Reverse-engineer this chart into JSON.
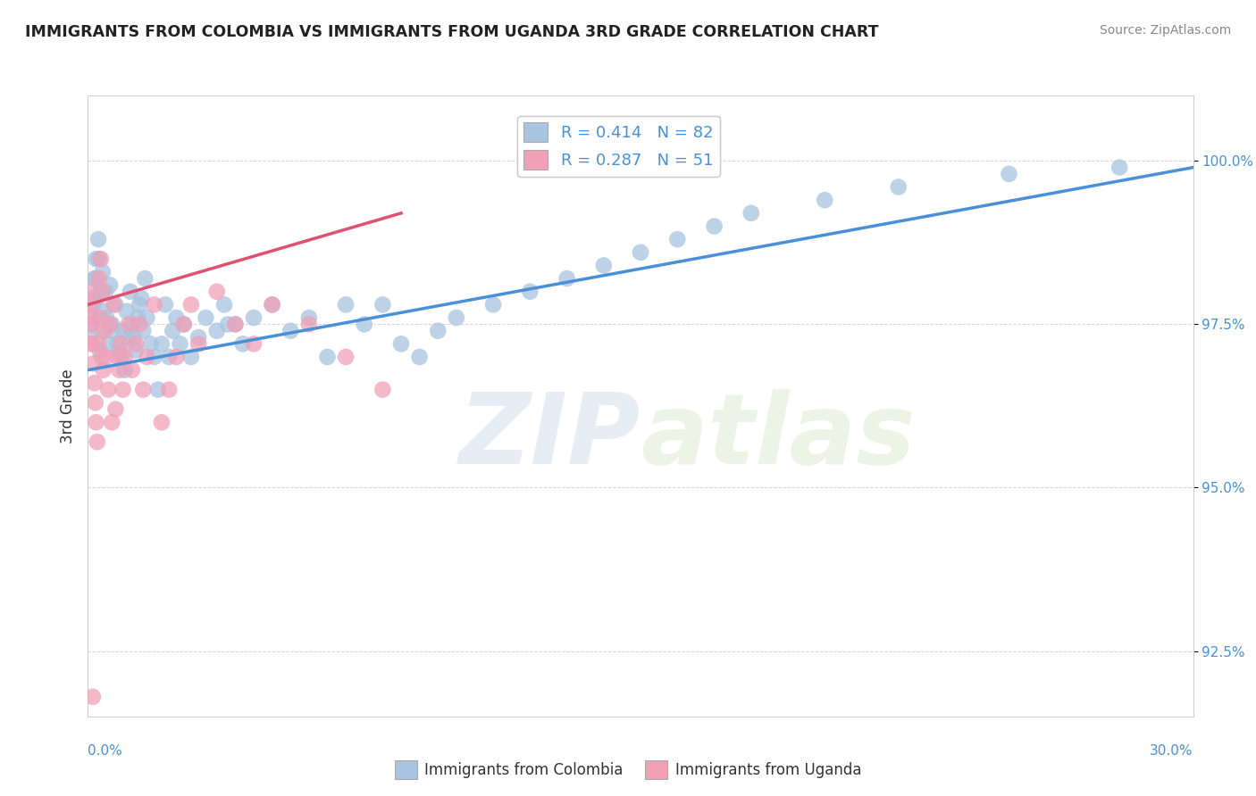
{
  "title": "IMMIGRANTS FROM COLOMBIA VS IMMIGRANTS FROM UGANDA 3RD GRADE CORRELATION CHART",
  "source": "Source: ZipAtlas.com",
  "ylabel": "3rd Grade",
  "yticks": [
    92.5,
    95.0,
    97.5,
    100.0
  ],
  "ytick_labels": [
    "92.5%",
    "95.0%",
    "97.5%",
    "100.0%"
  ],
  "xlim": [
    0.0,
    30.0
  ],
  "ylim": [
    91.5,
    101.0
  ],
  "colombia_color": "#a8c4e0",
  "uganda_color": "#f0a0b8",
  "colombia_line_color": "#4a90d9",
  "uganda_line_color": "#e05070",
  "legend1_label": "R = 0.414   N = 82",
  "legend2_label": "R = 0.287   N = 51",
  "bottom_legend1": "Immigrants from Colombia",
  "bottom_legend2": "Immigrants from Uganda",
  "watermark_zip": "ZIP",
  "watermark_atlas": "atlas",
  "colombia_scatter_x": [
    0.1,
    0.15,
    0.2,
    0.25,
    0.3,
    0.35,
    0.4,
    0.5,
    0.6,
    0.7,
    0.8,
    0.9,
    1.0,
    1.1,
    1.2,
    1.3,
    1.4,
    1.5,
    1.6,
    1.7,
    1.8,
    1.9,
    2.0,
    2.1,
    2.2,
    2.3,
    2.4,
    2.5,
    2.6,
    2.8,
    3.0,
    3.2,
    3.5,
    3.7,
    4.0,
    4.2,
    4.5,
    5.0,
    5.5,
    6.0,
    6.5,
    7.0,
    7.5,
    8.0,
    8.5,
    9.0,
    9.5,
    10.0,
    11.0,
    12.0,
    13.0,
    14.0,
    15.0,
    16.0,
    17.0,
    18.0,
    20.0,
    22.0,
    25.0,
    28.0,
    0.05,
    0.08,
    0.12,
    0.18,
    0.22,
    0.28,
    0.32,
    0.38,
    0.42,
    0.48,
    0.55,
    0.65,
    0.75,
    0.85,
    0.95,
    1.05,
    1.15,
    1.25,
    1.35,
    1.45,
    1.55,
    3.8
  ],
  "colombia_scatter_y": [
    97.5,
    97.8,
    98.2,
    97.9,
    98.5,
    98.0,
    98.3,
    97.6,
    98.1,
    97.4,
    97.2,
    97.0,
    96.8,
    97.3,
    97.5,
    97.1,
    97.8,
    97.4,
    97.6,
    97.2,
    97.0,
    96.5,
    97.2,
    97.8,
    97.0,
    97.4,
    97.6,
    97.2,
    97.5,
    97.0,
    97.3,
    97.6,
    97.4,
    97.8,
    97.5,
    97.2,
    97.6,
    97.8,
    97.4,
    97.6,
    97.0,
    97.8,
    97.5,
    97.8,
    97.2,
    97.0,
    97.4,
    97.6,
    97.8,
    98.0,
    98.2,
    98.4,
    98.6,
    98.8,
    99.0,
    99.2,
    99.4,
    99.6,
    99.8,
    99.9,
    97.3,
    97.6,
    97.9,
    98.2,
    98.5,
    98.8,
    97.1,
    97.4,
    97.7,
    98.0,
    97.2,
    97.5,
    97.8,
    97.1,
    97.4,
    97.7,
    98.0,
    97.3,
    97.6,
    97.9,
    98.2,
    97.5
  ],
  "uganda_scatter_x": [
    0.05,
    0.08,
    0.1,
    0.12,
    0.15,
    0.18,
    0.2,
    0.22,
    0.25,
    0.28,
    0.3,
    0.32,
    0.35,
    0.38,
    0.4,
    0.42,
    0.45,
    0.5,
    0.55,
    0.6,
    0.65,
    0.7,
    0.75,
    0.8,
    0.85,
    0.9,
    0.95,
    1.0,
    1.1,
    1.2,
    1.3,
    1.4,
    1.5,
    1.6,
    1.8,
    2.0,
    2.2,
    2.4,
    2.6,
    2.8,
    3.0,
    3.5,
    4.0,
    4.5,
    5.0,
    6.0,
    7.0,
    8.0,
    0.06,
    0.09,
    0.13
  ],
  "uganda_scatter_y": [
    98.0,
    97.8,
    97.5,
    97.2,
    96.9,
    96.6,
    96.3,
    96.0,
    95.7,
    97.2,
    98.2,
    97.6,
    98.5,
    97.0,
    98.0,
    96.8,
    97.4,
    97.0,
    96.5,
    97.5,
    96.0,
    97.8,
    96.2,
    97.0,
    96.8,
    97.2,
    96.5,
    97.0,
    97.5,
    96.8,
    97.2,
    97.5,
    96.5,
    97.0,
    97.8,
    96.0,
    96.5,
    97.0,
    97.5,
    97.8,
    97.2,
    98.0,
    97.5,
    97.2,
    97.8,
    97.5,
    97.0,
    96.5,
    97.6,
    97.2,
    91.8
  ],
  "colombia_trend_x": [
    0.0,
    30.0
  ],
  "colombia_trend_y": [
    96.8,
    99.9
  ],
  "uganda_trend_x": [
    0.0,
    8.5
  ],
  "uganda_trend_y": [
    97.8,
    99.2
  ]
}
